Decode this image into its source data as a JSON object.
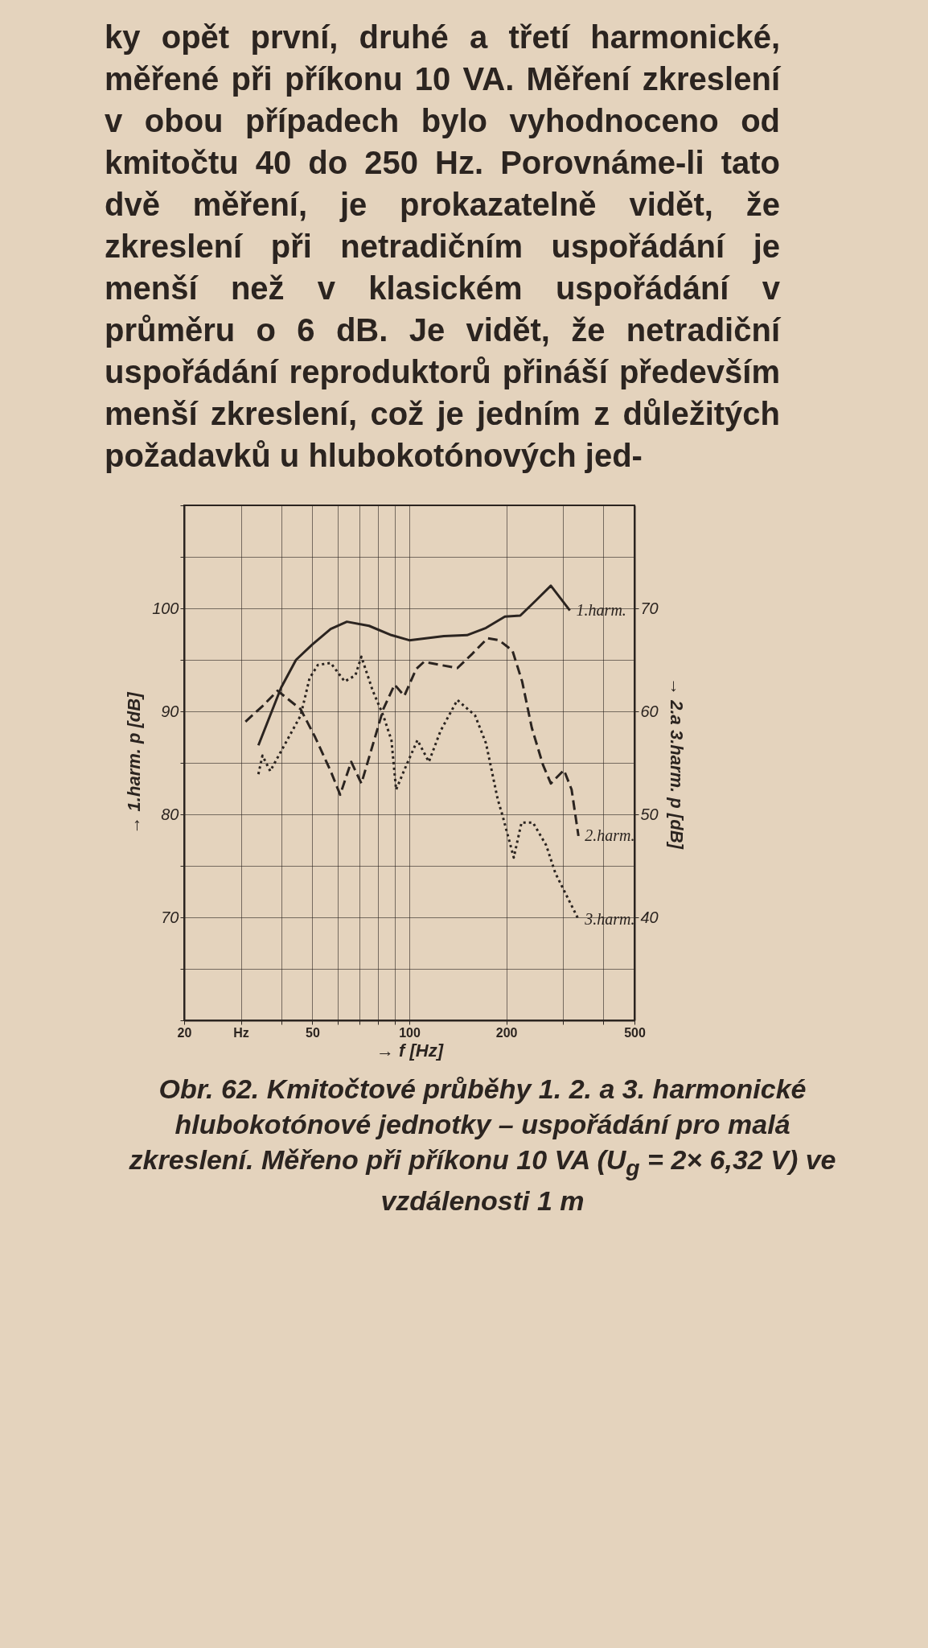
{
  "chart_data": {
    "type": "line",
    "xlabel": "→ f [Hz]",
    "ylabel": "→ 1.harm. p [dB]",
    "y2label": "→ 2.a 3.harm. p [dB]",
    "log": "x",
    "grid": true,
    "legend": false,
    "xlim": [
      20,
      500
    ],
    "xticks": [
      20,
      {
        "value": 30,
        "label": "Hz"
      },
      {
        "value": 40,
        "label": null
      },
      50,
      {
        "value": 60,
        "label": null
      },
      {
        "value": 70,
        "label": null
      },
      {
        "value": 80,
        "label": null
      },
      {
        "value": 90,
        "label": null
      },
      100,
      200,
      {
        "value": 300,
        "label": null
      },
      {
        "value": 400,
        "label": null
      },
      500
    ],
    "ylim": [
      60,
      110
    ],
    "yticks": [
      {
        "value": 60,
        "label": null
      },
      {
        "value": 65,
        "label": null
      },
      70,
      {
        "value": 75,
        "label": null
      },
      80,
      {
        "value": 85,
        "label": null
      },
      90,
      {
        "value": 95,
        "label": null
      },
      100,
      {
        "value": 105,
        "label": null
      },
      {
        "value": 110,
        "label": null
      }
    ],
    "y2lim": [
      30,
      80
    ],
    "y2ticks": [
      40,
      50,
      60,
      70
    ],
    "series": [
      {
        "name": "1.harm.",
        "color": "#2b2420",
        "line_style": "solid",
        "x": [
          34,
          40,
          44.5,
          50,
          57,
          64,
          75,
          88,
          100,
          128,
          151,
          173,
          198,
          221,
          246,
          275,
          315
        ],
        "values": [
          86.7,
          92.3,
          95.0,
          96.5,
          98.0,
          98.7,
          98.3,
          97.4,
          96.9,
          97.3,
          97.4,
          98.1,
          99.2,
          99.3,
          100.7,
          102.2,
          99.8
        ]
      },
      {
        "name": "2.harm.",
        "color": "#2b2420",
        "line_style": "dashed",
        "axis": "y2",
        "x": [
          31,
          35,
          39,
          46,
          51,
          57,
          61,
          66,
          71,
          83,
          90,
          96.5,
          105,
          111,
          125,
          141,
          157,
          175,
          190,
          209,
          224,
          240,
          260,
          275,
          302,
          319,
          335
        ],
        "values": [
          59.0,
          60.5,
          62.0,
          60.2,
          57.5,
          54.2,
          51.9,
          55.1,
          53.0,
          60.2,
          62.6,
          61.5,
          64.1,
          64.8,
          64.5,
          64.2,
          65.6,
          67.1,
          66.9,
          65.9,
          62.9,
          58.4,
          54.8,
          53.0,
          54.3,
          52.4,
          47.9
        ]
      },
      {
        "name": "3.harm.",
        "color": "#2b2420",
        "line_style": "dotted",
        "axis": "y2",
        "x": [
          34,
          35,
          37,
          46,
          49,
          52,
          57,
          63,
          68,
          71,
          77,
          83,
          88,
          91,
          98,
          106,
          115,
          125,
          141,
          160,
          173,
          188,
          195,
          211,
          223,
          242,
          266,
          284,
          335
        ],
        "values": [
          53.9,
          55.7,
          54.2,
          59.6,
          63.2,
          64.5,
          64.7,
          62.9,
          63.5,
          65.3,
          62.0,
          59.6,
          57.2,
          52.4,
          54.8,
          57.2,
          55.1,
          58.1,
          61.1,
          59.6,
          56.9,
          51.5,
          49.8,
          45.8,
          49.2,
          49.2,
          47.0,
          44.3,
          39.8
        ]
      }
    ],
    "annotations": [
      "ky opět první, druhé a třetí harmonické, měřené při příkonu 10 VA. Měření zkreslení v obou případech bylo vyhodnoceno od kmitočtu 40 do 250 Hz. Porovnáme-li tato dvě měření, je prokazatelně vidět, že zkreslení při netradičním uspořádání je menší než v klasickém uspořádání v průměru o 6 dB. Je vidět, že netradiční uspořádání reproduktorů přináší především menší zkreslení, což je jedním z důležitých požadavků u hlubokotónových jed-",
      "Obr. 62. Kmitočtové průběhy 1. 2. a 3. harmonické hlubokotónové jednotky – uspořádání pro malá zkreslení. Měřeno při příkonu 10 VA (U$_{g}$ = 2× 6,32 V) ve vzdálenosti 1 m"
    ]
  }
}
